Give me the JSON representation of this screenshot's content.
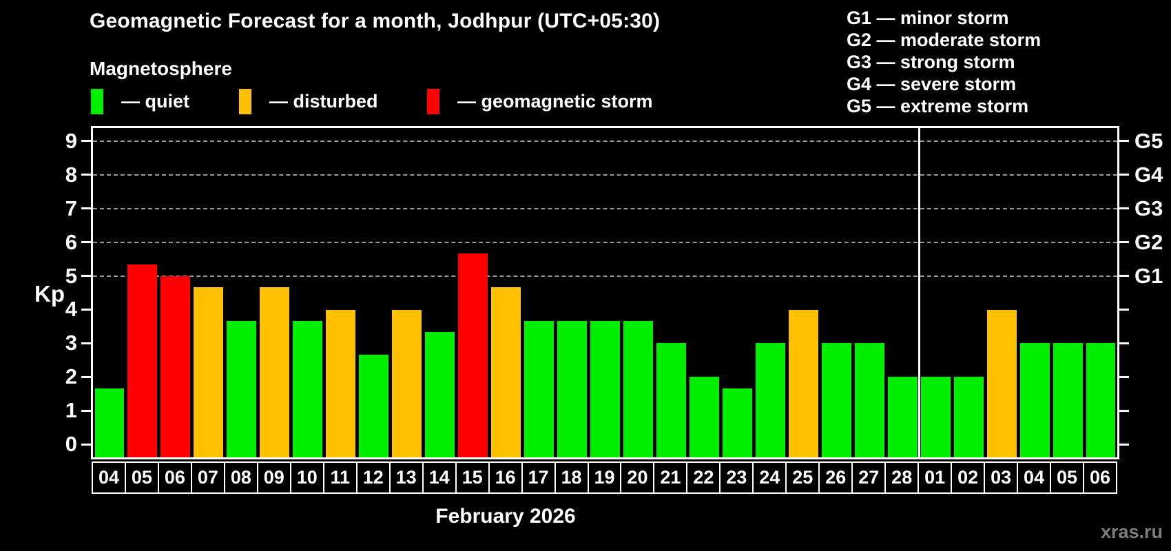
{
  "header": {
    "title": "Geomagnetic Forecast for a month, Jodhpur (UTC+05:30)",
    "subtitle": "Magnetosphere"
  },
  "legend": {
    "items": [
      {
        "key": "quiet",
        "label": "— quiet"
      },
      {
        "key": "disturbed",
        "label": "— disturbed"
      },
      {
        "key": "storm",
        "label": "— geomagnetic storm"
      }
    ]
  },
  "g_scale_legend": [
    "G1 — minor storm",
    "G2 — moderate storm",
    "G3 — strong storm",
    "G4 — severe storm",
    "G5 — extreme storm"
  ],
  "colors": {
    "quiet": "#00ee00",
    "disturbed": "#ffc000",
    "storm": "#ff0000",
    "axis": "#ffffff",
    "grid": "#9a9a9a",
    "watermark": "#7d7d7d"
  },
  "watermark": "xras.ru",
  "chart_data": {
    "type": "bar",
    "title": "Geomagnetic Forecast for a month, Jodhpur (UTC+05:30)",
    "ylabel": "Kp",
    "xlabel": "February 2026",
    "ylim": [
      0,
      9
    ],
    "yticks": [
      0,
      1,
      2,
      3,
      4,
      5,
      6,
      7,
      8,
      9
    ],
    "grid_kp_levels": [
      5,
      6,
      7,
      8,
      9
    ],
    "right_axis": [
      {
        "kp": 5,
        "g": "G1"
      },
      {
        "kp": 6,
        "g": "G2"
      },
      {
        "kp": 7,
        "g": "G3"
      },
      {
        "kp": 8,
        "g": "G4"
      },
      {
        "kp": 9,
        "g": "G5"
      }
    ],
    "categories": [
      "04",
      "05",
      "06",
      "07",
      "08",
      "09",
      "10",
      "11",
      "12",
      "13",
      "14",
      "15",
      "16",
      "17",
      "18",
      "19",
      "20",
      "21",
      "22",
      "23",
      "24",
      "25",
      "26",
      "27",
      "28",
      "01",
      "02",
      "03",
      "04",
      "05",
      "06"
    ],
    "values": [
      1.67,
      5.33,
      5.0,
      4.67,
      3.67,
      4.67,
      3.67,
      4.0,
      2.67,
      4.0,
      3.33,
      5.67,
      4.67,
      3.67,
      3.67,
      3.67,
      3.67,
      3.0,
      2.0,
      1.67,
      3.0,
      4.0,
      3.0,
      3.0,
      2.0,
      2.0,
      2.0,
      4.0,
      3.0,
      3.0,
      3.0
    ],
    "statuses": [
      "quiet",
      "storm",
      "storm",
      "disturbed",
      "quiet",
      "disturbed",
      "quiet",
      "disturbed",
      "quiet",
      "disturbed",
      "quiet",
      "storm",
      "disturbed",
      "quiet",
      "quiet",
      "quiet",
      "quiet",
      "quiet",
      "quiet",
      "quiet",
      "quiet",
      "disturbed",
      "quiet",
      "quiet",
      "quiet",
      "quiet",
      "quiet",
      "disturbed",
      "quiet",
      "quiet",
      "quiet"
    ],
    "month_separator_before_category_index": 25
  }
}
